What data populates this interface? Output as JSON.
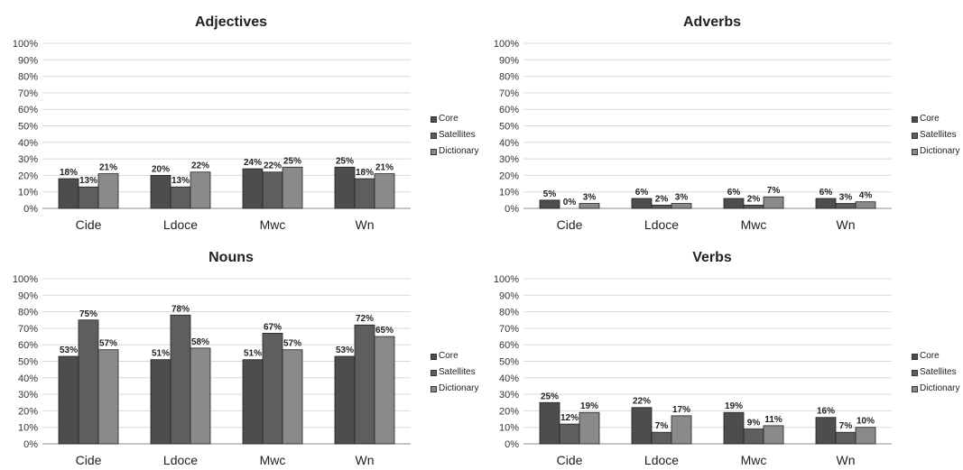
{
  "colors": {
    "core": "#4d4d4d",
    "satellites": "#5e5e5e",
    "dictionary": "#8a8a8a",
    "grid": "#d9d9d9"
  },
  "chart_data": [
    {
      "type": "bar",
      "title": "Adjectives",
      "categories": [
        "Cide",
        "Ldoce",
        "Mwc",
        "Wn"
      ],
      "ylim": [
        0,
        100
      ],
      "yticks": [
        "0%",
        "10%",
        "20%",
        "30%",
        "40%",
        "50%",
        "60%",
        "70%",
        "80%",
        "90%",
        "100%"
      ],
      "grid": true,
      "legend": "right",
      "series": [
        {
          "name": "Core",
          "values": [
            18,
            20,
            24,
            25
          ],
          "labels": [
            "18%",
            "20%",
            "24%",
            "25%"
          ]
        },
        {
          "name": "Satellites",
          "values": [
            13,
            13,
            22,
            18
          ],
          "labels": [
            "13%",
            "13%",
            "22%",
            "18%"
          ]
        },
        {
          "name": "Dictionary",
          "values": [
            21,
            22,
            25,
            21
          ],
          "labels": [
            "21%",
            "22%",
            "25%",
            "21%"
          ]
        }
      ]
    },
    {
      "type": "bar",
      "title": "Adverbs",
      "categories": [
        "Cide",
        "Ldoce",
        "Mwc",
        "Wn"
      ],
      "ylim": [
        0,
        100
      ],
      "yticks": [
        "0%",
        "10%",
        "20%",
        "30%",
        "40%",
        "50%",
        "60%",
        "70%",
        "80%",
        "90%",
        "100%"
      ],
      "grid": true,
      "legend": "right",
      "series": [
        {
          "name": "Core",
          "values": [
            5,
            6,
            6,
            6
          ],
          "labels": [
            "5%",
            "6%",
            "6%",
            "6%"
          ]
        },
        {
          "name": "Satellites",
          "values": [
            0,
            2,
            2,
            3
          ],
          "labels": [
            "0%",
            "2%",
            "2%",
            "3%"
          ]
        },
        {
          "name": "Dictionary",
          "values": [
            3,
            3,
            7,
            4
          ],
          "labels": [
            "3%",
            "3%",
            "7%",
            "4%"
          ]
        }
      ]
    },
    {
      "type": "bar",
      "title": "Nouns",
      "categories": [
        "Cide",
        "Ldoce",
        "Mwc",
        "Wn"
      ],
      "ylim": [
        0,
        100
      ],
      "yticks": [
        "0%",
        "10%",
        "20%",
        "30%",
        "40%",
        "50%",
        "60%",
        "70%",
        "80%",
        "90%",
        "100%"
      ],
      "grid": true,
      "legend": "right",
      "series": [
        {
          "name": "Core",
          "values": [
            53,
            51,
            51,
            53
          ],
          "labels": [
            "53%",
            "51%",
            "51%",
            "53%"
          ]
        },
        {
          "name": "Satellites",
          "values": [
            75,
            78,
            67,
            72
          ],
          "labels": [
            "75%",
            "78%",
            "67%",
            "72%"
          ]
        },
        {
          "name": "Dictionary",
          "values": [
            57,
            58,
            57,
            65
          ],
          "labels": [
            "57%",
            "58%",
            "57%",
            "65%"
          ]
        }
      ]
    },
    {
      "type": "bar",
      "title": "Verbs",
      "categories": [
        "Cide",
        "Ldoce",
        "Mwc",
        "Wn"
      ],
      "ylim": [
        0,
        100
      ],
      "yticks": [
        "0%",
        "10%",
        "20%",
        "30%",
        "40%",
        "50%",
        "60%",
        "70%",
        "80%",
        "90%",
        "100%"
      ],
      "grid": true,
      "legend": "right",
      "series": [
        {
          "name": "Core",
          "values": [
            25,
            22,
            19,
            16
          ],
          "labels": [
            "25%",
            "22%",
            "19%",
            "16%"
          ]
        },
        {
          "name": "Satellites",
          "values": [
            12,
            7,
            9,
            7
          ],
          "labels": [
            "12%",
            "7%",
            "9%",
            "7%"
          ]
        },
        {
          "name": "Dictionary",
          "values": [
            19,
            17,
            11,
            10
          ],
          "labels": [
            "19%",
            "17%",
            "11%",
            "10%"
          ]
        }
      ]
    }
  ]
}
